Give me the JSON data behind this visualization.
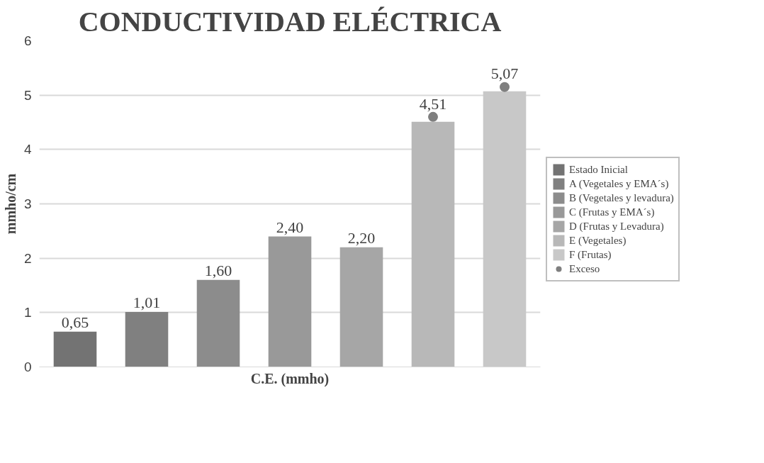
{
  "chart_data": {
    "type": "bar",
    "title": "CONDUCTIVIDAD ELÉCTRICA",
    "xlabel": "C.E. (mmho)",
    "ylabel": "mmho/cm",
    "categories": [
      null,
      null,
      null,
      null,
      null,
      null,
      null
    ],
    "series": [
      {
        "name": "Estado Inicial",
        "color": "#737373",
        "values": [
          0.65,
          null,
          null,
          null,
          null,
          null,
          null
        ],
        "value_labels": [
          "0,65",
          null,
          null,
          null,
          null,
          null,
          null
        ]
      },
      {
        "name": "A (Vegetales y EMA´s)",
        "color": "#808080",
        "values": [
          null,
          1.01,
          null,
          null,
          null,
          null,
          null
        ],
        "value_labels": [
          null,
          "1,01",
          null,
          null,
          null,
          null,
          null
        ]
      },
      {
        "name": "B (Vegetales y levadura)",
        "color": "#8c8c8c",
        "values": [
          null,
          null,
          1.6,
          null,
          null,
          null,
          null
        ],
        "value_labels": [
          null,
          null,
          "1,60",
          null,
          null,
          null,
          null
        ]
      },
      {
        "name": "C (Frutas y EMA´s)",
        "color": "#999999",
        "values": [
          null,
          null,
          null,
          2.4,
          null,
          null,
          null
        ],
        "value_labels": [
          null,
          null,
          null,
          "2,40",
          null,
          null,
          null
        ]
      },
      {
        "name": "D (Frutas y Levadura)",
        "color": "#a6a6a6",
        "values": [
          null,
          null,
          null,
          null,
          2.2,
          null,
          null
        ],
        "value_labels": [
          null,
          null,
          null,
          null,
          "2,20",
          null,
          null
        ]
      },
      {
        "name": "E (Vegetales)",
        "color": "#b8b8b8",
        "values": [
          null,
          null,
          null,
          null,
          null,
          4.51,
          null
        ],
        "value_labels": [
          null,
          null,
          null,
          null,
          null,
          "4,51",
          null
        ]
      },
      {
        "name": "F (Frutas)",
        "color": "#c8c8c8",
        "values": [
          null,
          null,
          null,
          null,
          null,
          null,
          5.07
        ],
        "value_labels": [
          null,
          null,
          null,
          null,
          null,
          null,
          "5,07"
        ]
      },
      {
        "name": "Exceso",
        "type": "scatter",
        "marker": "circle",
        "color": "#7f7f7f",
        "values": [
          null,
          null,
          null,
          null,
          null,
          4.6,
          5.15
        ]
      }
    ],
    "ylim": [
      0,
      6
    ],
    "yticks": [
      0,
      1,
      2,
      3,
      4,
      5,
      6
    ],
    "grid": "y",
    "legend": "right"
  }
}
